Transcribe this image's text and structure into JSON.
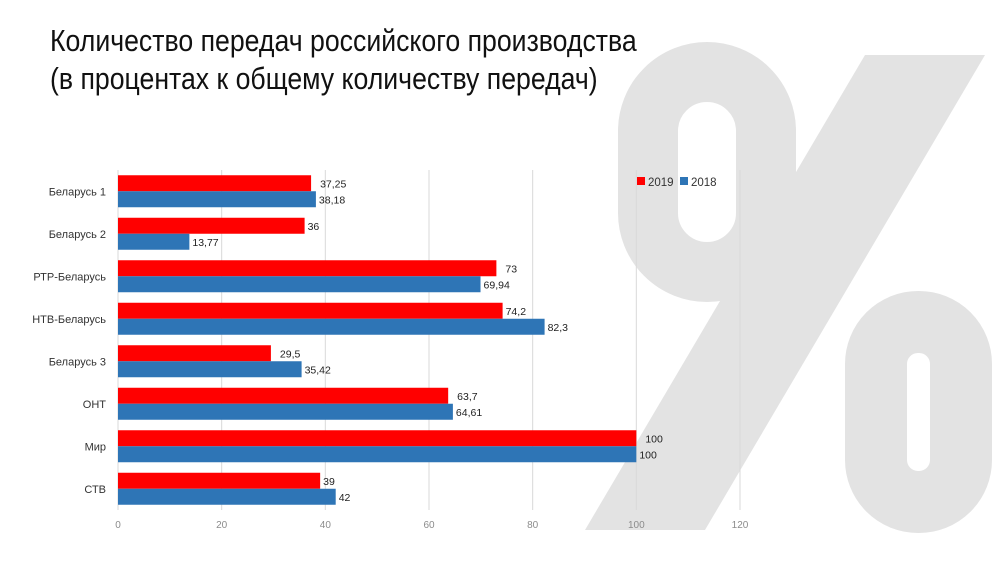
{
  "title_lines": [
    "Количество передач российского производства",
    "(в процентах к общему количеству передач)"
  ],
  "chart_data": {
    "type": "bar",
    "orientation": "horizontal",
    "title": "Количество передач российского производства (в процентах к общему количеству передач)",
    "categories": [
      "Беларусь 1",
      "Беларусь 2",
      "РТР-Беларусь",
      "НТВ-Беларусь",
      "Беларусь 3",
      "ОНТ",
      "Мир",
      "СТВ"
    ],
    "series": [
      {
        "name": "2019",
        "color": "#ff0000",
        "values": [
          37.25,
          36,
          73,
          74.2,
          29.5,
          63.7,
          100,
          39
        ],
        "labels": [
          "37,25",
          "36",
          "73",
          "74,2",
          "29,5",
          "63,7",
          "100",
          "39"
        ]
      },
      {
        "name": "2018",
        "color": "#2e75b6",
        "values": [
          38.18,
          13.77,
          69.94,
          82.3,
          35.42,
          64.61,
          100,
          42
        ],
        "labels": [
          "38,18",
          "13,77",
          "69,94",
          "82,3",
          "35,42",
          "64,61",
          "100",
          "42"
        ]
      }
    ],
    "xlim": [
      0,
      120
    ],
    "xticks": [
      0,
      20,
      40,
      60,
      80,
      100,
      120
    ],
    "grid": true,
    "legend": "top-right",
    "xlabel": "",
    "ylabel": ""
  },
  "watermark": "%"
}
